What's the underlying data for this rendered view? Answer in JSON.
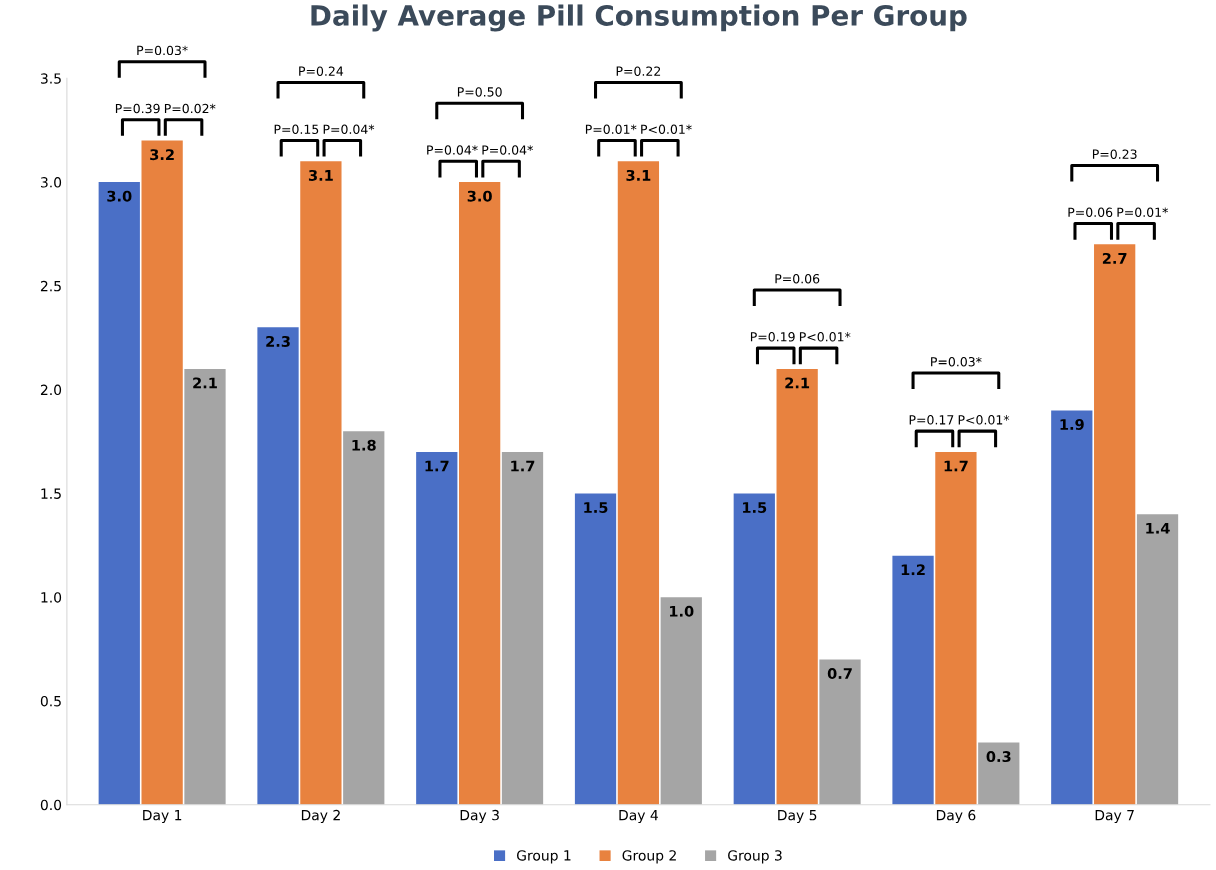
{
  "chart_data": {
    "type": "bar",
    "title": "Daily Average Pill Consumption Per Group",
    "categories": [
      "Day 1",
      "Day 2",
      "Day 3",
      "Day 4",
      "Day 5",
      "Day 6",
      "Day 7"
    ],
    "series": [
      {
        "name": "Group 1",
        "color": "#4a6fc6",
        "values": [
          3.0,
          2.3,
          1.7,
          1.5,
          1.5,
          1.2,
          1.9
        ]
      },
      {
        "name": "Group 2",
        "color": "#e8823f",
        "values": [
          3.2,
          3.1,
          3.0,
          3.1,
          2.1,
          1.7,
          2.7
        ]
      },
      {
        "name": "Group 3",
        "color": "#a5a5a5",
        "values": [
          2.1,
          1.8,
          1.7,
          1.0,
          0.7,
          0.3,
          1.4
        ]
      }
    ],
    "ylim": [
      0,
      3.5
    ],
    "yticks": [
      {
        "value": 0,
        "label": "0.0"
      },
      {
        "value": 0.5,
        "label": "0.5"
      },
      {
        "value": 1,
        "label": "1.0"
      },
      {
        "value": 1.5,
        "label": "1.5"
      },
      {
        "value": 2,
        "label": "2.0"
      },
      {
        "value": 2.5,
        "label": "2.5"
      },
      {
        "value": 3,
        "label": "3.0"
      },
      {
        "value": 3.5,
        "label": "3.5"
      }
    ],
    "value_labels": [
      [
        "3.0",
        "2.3",
        "1.7",
        "1.5",
        "1.5",
        "1.2",
        "1.9"
      ],
      [
        "3.2",
        "3.1",
        "3.0",
        "3.1",
        "2.1",
        "1.7",
        "2.7"
      ],
      [
        "2.1",
        "1.8",
        "1.7",
        "1.0",
        "0.7",
        "0.3",
        "1.4"
      ]
    ],
    "legend": "bottom",
    "grid": false,
    "annotations": [
      "P=0.03*",
      "P=0.39",
      "P=0.02*",
      "P=0.24",
      "P=0.15",
      "P=0.04*",
      "P=0.50",
      "P=0.04*",
      "P=0.04*",
      "P=0.22",
      "P=0.01*",
      "P<0.01*",
      "P=0.06",
      "P=0.19",
      "P<0.01*",
      "P=0.03*",
      "P=0.17",
      "P<0.01*",
      "P=0.23",
      "P=0.06",
      "P=0.01*"
    ]
  }
}
